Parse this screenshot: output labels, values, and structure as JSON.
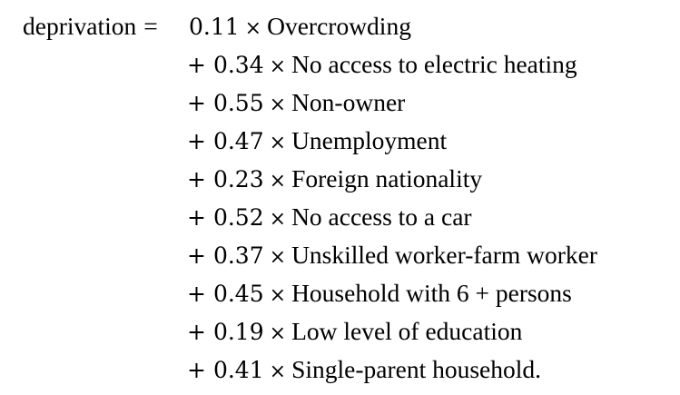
{
  "equation": {
    "lhs": "deprivation",
    "equals": "=",
    "times_symbol": "×",
    "plus_symbol": "+",
    "terms": [
      {
        "coefficient": "0.11",
        "variable": "Overcrowding"
      },
      {
        "coefficient": "0.34",
        "variable": "No access to electric heating"
      },
      {
        "coefficient": "0.55",
        "variable": "Non-owner"
      },
      {
        "coefficient": "0.47",
        "variable": "Unemployment"
      },
      {
        "coefficient": "0.23",
        "variable": "Foreign nationality"
      },
      {
        "coefficient": "0.52",
        "variable": "No access to a car"
      },
      {
        "coefficient": "0.37",
        "variable": "Unskilled worker-farm worker"
      },
      {
        "coefficient": "0.45",
        "variable": "Household with 6 + persons"
      },
      {
        "coefficient": "0.19",
        "variable": "Low level of education"
      },
      {
        "coefficient": "0.41",
        "variable": "Single-parent household."
      }
    ]
  }
}
